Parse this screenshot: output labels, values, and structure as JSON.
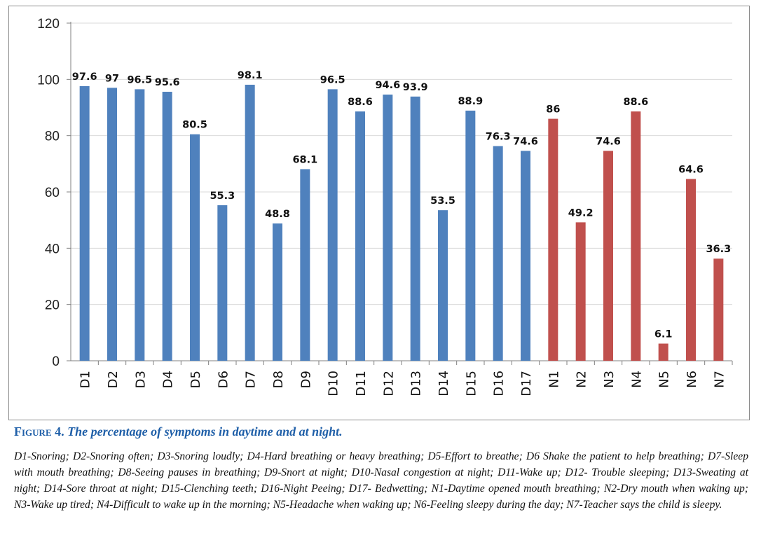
{
  "chart_data": {
    "type": "bar",
    "categories": [
      "D1",
      "D2",
      "D3",
      "D4",
      "D5",
      "D6",
      "D7",
      "D8",
      "D9",
      "D10",
      "D11",
      "D12",
      "D13",
      "D14",
      "D15",
      "D16",
      "D17",
      "N1",
      "N2",
      "N3",
      "N4",
      "N5",
      "N6",
      "N7"
    ],
    "values": [
      97.6,
      97,
      96.5,
      95.6,
      80.5,
      55.3,
      98.1,
      48.8,
      68.1,
      96.5,
      88.6,
      94.6,
      93.9,
      53.5,
      88.9,
      76.3,
      74.6,
      86,
      49.2,
      74.6,
      88.6,
      6.1,
      64.6,
      36.3
    ],
    "value_labels": [
      "97.6",
      "97",
      "96.5",
      "95.6",
      "80.5",
      "55.3",
      "98.1",
      "48.8",
      "68.1",
      "96.5",
      "88.6",
      "94.6",
      "93.9",
      "53.5",
      "88.9",
      "76.3",
      "74.6",
      "86",
      "49.2",
      "74.6",
      "88.6",
      "6.1",
      "64.6",
      "36.3"
    ],
    "ylim": [
      0,
      120
    ],
    "yticks": [
      "0",
      "20",
      "40",
      "60",
      "80",
      "100",
      "120"
    ],
    "grid": true,
    "colors": {
      "daytime": "#4f81bd",
      "night": "#c0504d",
      "grid": "#d9d9d9"
    },
    "xlabel": "",
    "ylabel": ""
  },
  "caption": {
    "label": "Figure 4.",
    "text": "The percentage of symptoms in daytime and at night."
  },
  "legend_text": "D1-Snoring; D2-Snoring often; D3-Snoring loudly; D4-Hard breathing or heavy breathing; D5-Effort to breathe; D6 Shake the patient to help breathing; D7-Sleep with mouth breathing; D8-Seeing pauses in breathing; D9-Snort at night; D10-Nasal congestion at night; D11-Wake up; D12- Trouble sleeping; D13-Sweating at night; D14-Sore throat at night; D15-Clenching teeth; D16-Night Peeing; D17- Bedwetting; N1-Daytime opened mouth breathing; N2-Dry mouth when waking up; N3-Wake up tired; N4-Difficult to wake up in the morning; N5-Headache when waking up; N6-Feeling sleepy during the day; N7-Teacher says the child is sleepy."
}
